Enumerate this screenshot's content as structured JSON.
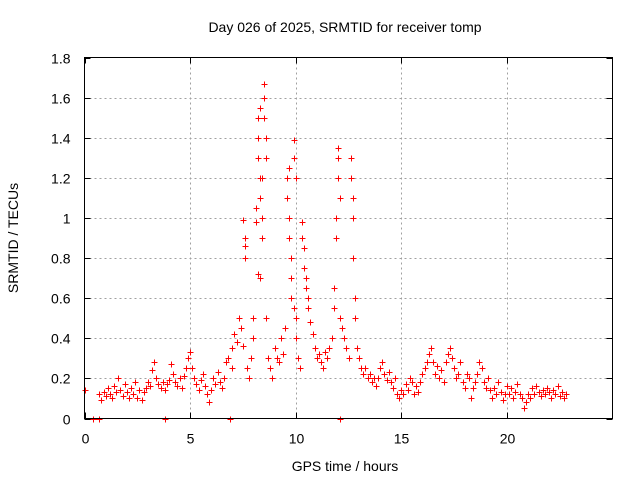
{
  "chart_data": {
    "type": "scatter",
    "title": "Day 026 of 2025, SRMTID for receiver tomp",
    "xlabel": "GPS time / hours",
    "ylabel": "SRMTID / TECUs",
    "xlim": [
      0,
      25
    ],
    "ylim": [
      0,
      1.8
    ],
    "xticks": [
      0,
      5,
      10,
      15,
      20
    ],
    "yticks": [
      0,
      0.2,
      0.4,
      0.6,
      0.8,
      1,
      1.2,
      1.4,
      1.6,
      1.8
    ],
    "xtick_labels": [
      "0",
      "5",
      "10",
      "15",
      "20"
    ],
    "ytick_labels": [
      "0",
      "0.2",
      "0.4",
      "0.6",
      "0.8",
      "1",
      "1.2",
      "1.4",
      "1.6",
      "1.8"
    ],
    "grid": true,
    "marker": "plus",
    "color": "#ff0000",
    "series": [
      {
        "name": "SRMTID",
        "points": [
          [
            0.0,
            0.14
          ],
          [
            0.4,
            0.0
          ],
          [
            0.7,
            0.0
          ],
          [
            0.7,
            0.12
          ],
          [
            0.8,
            0.09
          ],
          [
            0.9,
            0.13
          ],
          [
            1.0,
            0.11
          ],
          [
            1.1,
            0.15
          ],
          [
            1.2,
            0.12
          ],
          [
            1.3,
            0.1
          ],
          [
            1.4,
            0.16
          ],
          [
            1.5,
            0.13
          ],
          [
            1.6,
            0.2
          ],
          [
            1.7,
            0.14
          ],
          [
            1.8,
            0.11
          ],
          [
            1.9,
            0.17
          ],
          [
            2.0,
            0.13
          ],
          [
            2.1,
            0.1
          ],
          [
            2.2,
            0.15
          ],
          [
            2.3,
            0.12
          ],
          [
            2.4,
            0.18
          ],
          [
            2.5,
            0.1
          ],
          [
            2.6,
            0.14
          ],
          [
            2.7,
            0.09
          ],
          [
            2.8,
            0.13
          ],
          [
            2.9,
            0.15
          ],
          [
            3.0,
            0.18
          ],
          [
            3.1,
            0.16
          ],
          [
            3.2,
            0.24
          ],
          [
            3.3,
            0.28
          ],
          [
            3.4,
            0.2
          ],
          [
            3.5,
            0.17
          ],
          [
            3.6,
            0.15
          ],
          [
            3.7,
            0.18
          ],
          [
            3.8,
            0.0
          ],
          [
            3.8,
            0.14
          ],
          [
            3.9,
            0.17
          ],
          [
            4.0,
            0.19
          ],
          [
            4.1,
            0.27
          ],
          [
            4.2,
            0.22
          ],
          [
            4.3,
            0.18
          ],
          [
            4.4,
            0.16
          ],
          [
            4.5,
            0.2
          ],
          [
            4.6,
            0.15
          ],
          [
            4.7,
            0.21
          ],
          [
            4.8,
            0.25
          ],
          [
            4.9,
            0.3
          ],
          [
            5.0,
            0.33
          ],
          [
            5.1,
            0.25
          ],
          [
            5.2,
            0.2
          ],
          [
            5.3,
            0.17
          ],
          [
            5.4,
            0.14
          ],
          [
            5.5,
            0.19
          ],
          [
            5.6,
            0.22
          ],
          [
            5.7,
            0.16
          ],
          [
            5.8,
            0.12
          ],
          [
            5.9,
            0.08
          ],
          [
            6.0,
            0.14
          ],
          [
            6.1,
            0.2
          ],
          [
            6.2,
            0.17
          ],
          [
            6.3,
            0.23
          ],
          [
            6.4,
            0.18
          ],
          [
            6.5,
            0.15
          ],
          [
            6.6,
            0.2
          ],
          [
            6.7,
            0.28
          ],
          [
            6.8,
            0.3
          ],
          [
            6.9,
            0.0
          ],
          [
            7.0,
            0.25
          ],
          [
            7.0,
            0.35
          ],
          [
            7.1,
            0.42
          ],
          [
            7.2,
            0.38
          ],
          [
            7.3,
            0.5
          ],
          [
            7.4,
            0.45
          ],
          [
            7.5,
            0.36
          ],
          [
            7.5,
            0.99
          ],
          [
            7.6,
            0.8
          ],
          [
            7.6,
            0.86
          ],
          [
            7.6,
            0.9
          ],
          [
            7.7,
            0.25
          ],
          [
            7.8,
            0.2
          ],
          [
            7.9,
            0.3
          ],
          [
            8.0,
            0.4
          ],
          [
            8.0,
            0.5
          ],
          [
            8.1,
            1.05
          ],
          [
            8.1,
            0.98
          ],
          [
            8.2,
            1.5
          ],
          [
            8.2,
            1.4
          ],
          [
            8.2,
            1.3
          ],
          [
            8.2,
            0.72
          ],
          [
            8.3,
            1.55
          ],
          [
            8.3,
            1.2
          ],
          [
            8.3,
            1.1
          ],
          [
            8.3,
            0.7
          ],
          [
            8.4,
            1.2
          ],
          [
            8.4,
            1.0
          ],
          [
            8.4,
            0.9
          ],
          [
            8.5,
            1.67
          ],
          [
            8.5,
            1.6
          ],
          [
            8.5,
            1.5
          ],
          [
            8.6,
            1.4
          ],
          [
            8.6,
            1.3
          ],
          [
            8.6,
            0.5
          ],
          [
            8.7,
            0.3
          ],
          [
            8.8,
            0.25
          ],
          [
            8.9,
            0.2
          ],
          [
            9.0,
            0.35
          ],
          [
            9.1,
            0.3
          ],
          [
            9.2,
            0.28
          ],
          [
            9.3,
            0.4
          ],
          [
            9.4,
            0.32
          ],
          [
            9.5,
            0.45
          ],
          [
            9.6,
            1.1
          ],
          [
            9.6,
            1.2
          ],
          [
            9.7,
            1.25
          ],
          [
            9.7,
            1.0
          ],
          [
            9.7,
            0.9
          ],
          [
            9.8,
            0.8
          ],
          [
            9.8,
            0.7
          ],
          [
            9.8,
            0.6
          ],
          [
            9.9,
            1.39
          ],
          [
            9.9,
            1.3
          ],
          [
            9.9,
            0.55
          ],
          [
            10.0,
            1.2
          ],
          [
            10.0,
            0.5
          ],
          [
            10.0,
            0.4
          ],
          [
            10.1,
            0.3
          ],
          [
            10.2,
            0.25
          ],
          [
            10.3,
            0.98
          ],
          [
            10.3,
            0.9
          ],
          [
            10.4,
            0.85
          ],
          [
            10.4,
            0.75
          ],
          [
            10.5,
            0.7
          ],
          [
            10.5,
            0.65
          ],
          [
            10.6,
            0.6
          ],
          [
            10.6,
            0.55
          ],
          [
            10.7,
            0.48
          ],
          [
            10.8,
            0.42
          ],
          [
            10.9,
            0.35
          ],
          [
            11.0,
            0.3
          ],
          [
            11.1,
            0.32
          ],
          [
            11.2,
            0.28
          ],
          [
            11.3,
            0.25
          ],
          [
            11.4,
            0.33
          ],
          [
            11.5,
            0.3
          ],
          [
            11.6,
            0.35
          ],
          [
            11.7,
            0.4
          ],
          [
            11.8,
            0.55
          ],
          [
            11.8,
            0.65
          ],
          [
            11.9,
            0.9
          ],
          [
            11.9,
            1.0
          ],
          [
            12.0,
            1.35
          ],
          [
            12.0,
            1.3
          ],
          [
            12.0,
            1.2
          ],
          [
            12.1,
            0.0
          ],
          [
            12.1,
            1.1
          ],
          [
            12.1,
            0.5
          ],
          [
            12.2,
            0.45
          ],
          [
            12.3,
            0.4
          ],
          [
            12.4,
            0.35
          ],
          [
            12.5,
            0.3
          ],
          [
            12.6,
            1.3
          ],
          [
            12.6,
            1.2
          ],
          [
            12.7,
            1.1
          ],
          [
            12.7,
            1.0
          ],
          [
            12.7,
            0.8
          ],
          [
            12.8,
            0.6
          ],
          [
            12.8,
            0.5
          ],
          [
            12.9,
            0.35
          ],
          [
            13.0,
            0.3
          ],
          [
            13.1,
            0.25
          ],
          [
            13.2,
            0.22
          ],
          [
            13.3,
            0.25
          ],
          [
            13.4,
            0.2
          ],
          [
            13.5,
            0.22
          ],
          [
            13.6,
            0.18
          ],
          [
            13.7,
            0.2
          ],
          [
            13.8,
            0.16
          ],
          [
            13.9,
            0.2
          ],
          [
            14.0,
            0.25
          ],
          [
            14.1,
            0.28
          ],
          [
            14.2,
            0.22
          ],
          [
            14.3,
            0.19
          ],
          [
            14.4,
            0.23
          ],
          [
            14.5,
            0.18
          ],
          [
            14.6,
            0.15
          ],
          [
            14.7,
            0.2
          ],
          [
            14.8,
            0.12
          ],
          [
            14.9,
            0.1
          ],
          [
            15.0,
            0.14
          ],
          [
            15.1,
            0.12
          ],
          [
            15.2,
            0.17
          ],
          [
            15.3,
            0.14
          ],
          [
            15.4,
            0.2
          ],
          [
            15.5,
            0.18
          ],
          [
            15.6,
            0.12
          ],
          [
            15.7,
            0.16
          ],
          [
            15.8,
            0.13
          ],
          [
            15.9,
            0.18
          ],
          [
            16.0,
            0.22
          ],
          [
            16.1,
            0.25
          ],
          [
            16.2,
            0.28
          ],
          [
            16.3,
            0.32
          ],
          [
            16.4,
            0.35
          ],
          [
            16.5,
            0.28
          ],
          [
            16.6,
            0.22
          ],
          [
            16.7,
            0.26
          ],
          [
            16.8,
            0.2
          ],
          [
            16.9,
            0.24
          ],
          [
            17.0,
            0.18
          ],
          [
            17.1,
            0.28
          ],
          [
            17.2,
            0.32
          ],
          [
            17.3,
            0.35
          ],
          [
            17.4,
            0.3
          ],
          [
            17.5,
            0.25
          ],
          [
            17.6,
            0.2
          ],
          [
            17.7,
            0.22
          ],
          [
            17.8,
            0.28
          ],
          [
            17.9,
            0.18
          ],
          [
            18.0,
            0.15
          ],
          [
            18.1,
            0.22
          ],
          [
            18.2,
            0.2
          ],
          [
            18.3,
            0.1
          ],
          [
            18.4,
            0.15
          ],
          [
            18.5,
            0.18
          ],
          [
            18.6,
            0.22
          ],
          [
            18.7,
            0.28
          ],
          [
            18.8,
            0.25
          ],
          [
            18.9,
            0.18
          ],
          [
            19.0,
            0.15
          ],
          [
            19.1,
            0.2
          ],
          [
            19.2,
            0.14
          ],
          [
            19.3,
            0.1
          ],
          [
            19.4,
            0.15
          ],
          [
            19.5,
            0.12
          ],
          [
            19.6,
            0.18
          ],
          [
            19.7,
            0.13
          ],
          [
            19.8,
            0.09
          ],
          [
            19.9,
            0.12
          ],
          [
            20.0,
            0.16
          ],
          [
            20.1,
            0.12
          ],
          [
            20.2,
            0.15
          ],
          [
            20.3,
            0.1
          ],
          [
            20.4,
            0.13
          ],
          [
            20.5,
            0.17
          ],
          [
            20.6,
            0.12
          ],
          [
            20.7,
            0.1
          ],
          [
            20.8,
            0.05
          ],
          [
            20.9,
            0.08
          ],
          [
            21.0,
            0.12
          ],
          [
            21.1,
            0.1
          ],
          [
            21.2,
            0.15
          ],
          [
            21.3,
            0.12
          ],
          [
            21.4,
            0.16
          ],
          [
            21.5,
            0.13
          ],
          [
            21.6,
            0.11
          ],
          [
            21.7,
            0.14
          ],
          [
            21.8,
            0.12
          ],
          [
            21.9,
            0.15
          ],
          [
            22.0,
            0.13
          ],
          [
            22.1,
            0.1
          ],
          [
            22.2,
            0.14
          ],
          [
            22.3,
            0.12
          ],
          [
            22.4,
            0.16
          ],
          [
            22.5,
            0.11
          ],
          [
            22.6,
            0.13
          ],
          [
            22.7,
            0.1
          ],
          [
            22.8,
            0.12
          ]
        ]
      }
    ]
  }
}
